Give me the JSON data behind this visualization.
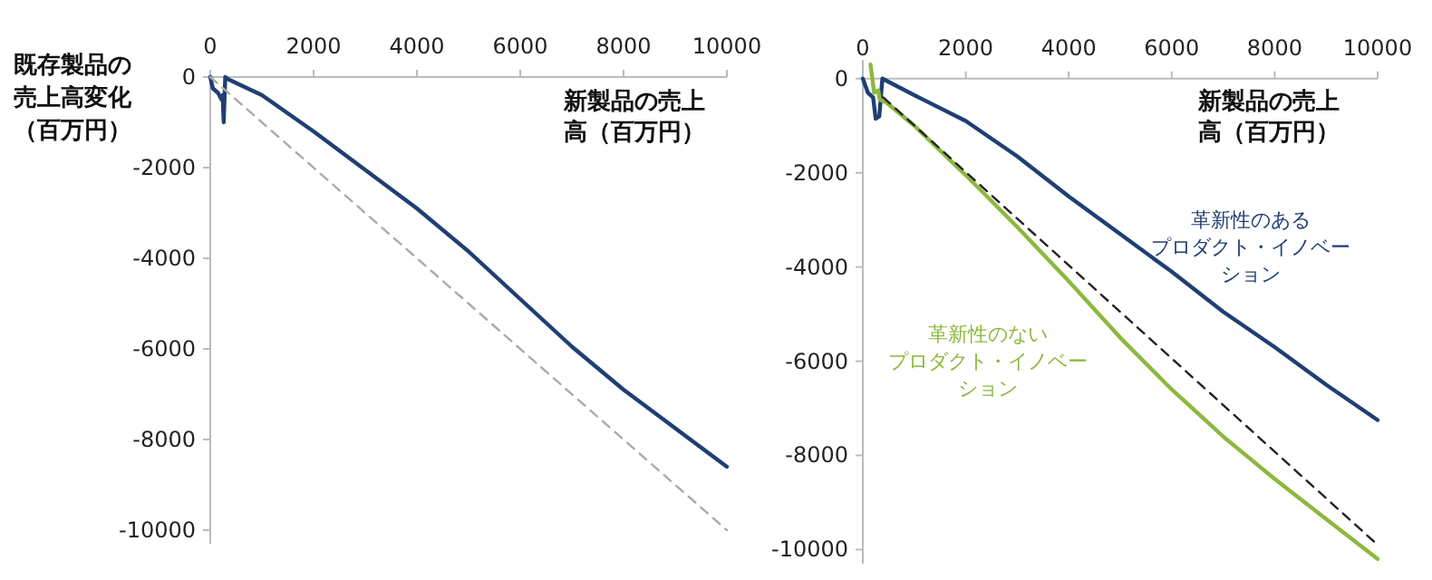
{
  "chart_data": [
    {
      "type": "line",
      "ylabel": "既存製品の売上高変化（百万円）",
      "xlabel": "新製品の売上高（百万円）",
      "xlim": [
        0,
        10000
      ],
      "ylim": [
        -10300,
        100
      ],
      "xticks": [
        0,
        2000,
        4000,
        6000,
        8000,
        10000
      ],
      "yticks": [
        0,
        -2000,
        -4000,
        -6000,
        -8000,
        -10000
      ],
      "series": [
        {
          "color": "#1f3f73",
          "line_style": "solid",
          "x": [
            0,
            50,
            150,
            220,
            240,
            260,
            290,
            350,
            1000,
            2000,
            3000,
            4000,
            5000,
            6000,
            7000,
            8000,
            9000,
            10000
          ],
          "values": [
            0,
            -250,
            -350,
            -500,
            -400,
            -1000,
            0,
            -50,
            -400,
            -1200,
            -2050,
            -2900,
            -3850,
            -4900,
            -5950,
            -6900,
            -7750,
            -8600
          ]
        },
        {
          "color": "#aaaaaa",
          "line_style": "dashed",
          "x": [
            0,
            10000
          ],
          "values": [
            0,
            -10000
          ]
        }
      ]
    },
    {
      "type": "line",
      "xlabel": "新製品の売上高（百万円）",
      "xlim": [
        0,
        10000
      ],
      "ylim": [
        -10300,
        400
      ],
      "xticks": [
        0,
        2000,
        4000,
        6000,
        8000,
        10000
      ],
      "yticks": [
        0,
        -2000,
        -4000,
        -6000,
        -8000,
        -10000
      ],
      "series": [
        {
          "name": "革新性のあるプロダクト・イノベーション",
          "color": "#1f3f73",
          "line_style": "solid",
          "x": [
            0,
            100,
            200,
            250,
            320,
            380,
            1000,
            2000,
            3000,
            4000,
            5000,
            6000,
            7000,
            8000,
            9000,
            10000
          ],
          "values": [
            0,
            -300,
            -400,
            -850,
            -800,
            0,
            -350,
            -900,
            -1650,
            -2500,
            -3300,
            -4100,
            -4950,
            -5700,
            -6500,
            -7250
          ]
        },
        {
          "name": "革新性のないプロダクト・イノベーション",
          "color": "#8db83f",
          "line_style": "solid",
          "x": [
            150,
            220,
            300,
            330,
            450,
            1000,
            2000,
            3000,
            4000,
            5000,
            6000,
            7000,
            8000,
            9000,
            10000
          ],
          "values": [
            300,
            -300,
            -250,
            -450,
            -500,
            -1000,
            -2050,
            -3150,
            -4300,
            -5500,
            -6600,
            -7600,
            -8500,
            -9350,
            -10200
          ]
        },
        {
          "color": "#222222",
          "line_style": "dashed",
          "x": [
            400,
            10000
          ],
          "values": [
            -400,
            -9900
          ]
        }
      ]
    }
  ]
}
